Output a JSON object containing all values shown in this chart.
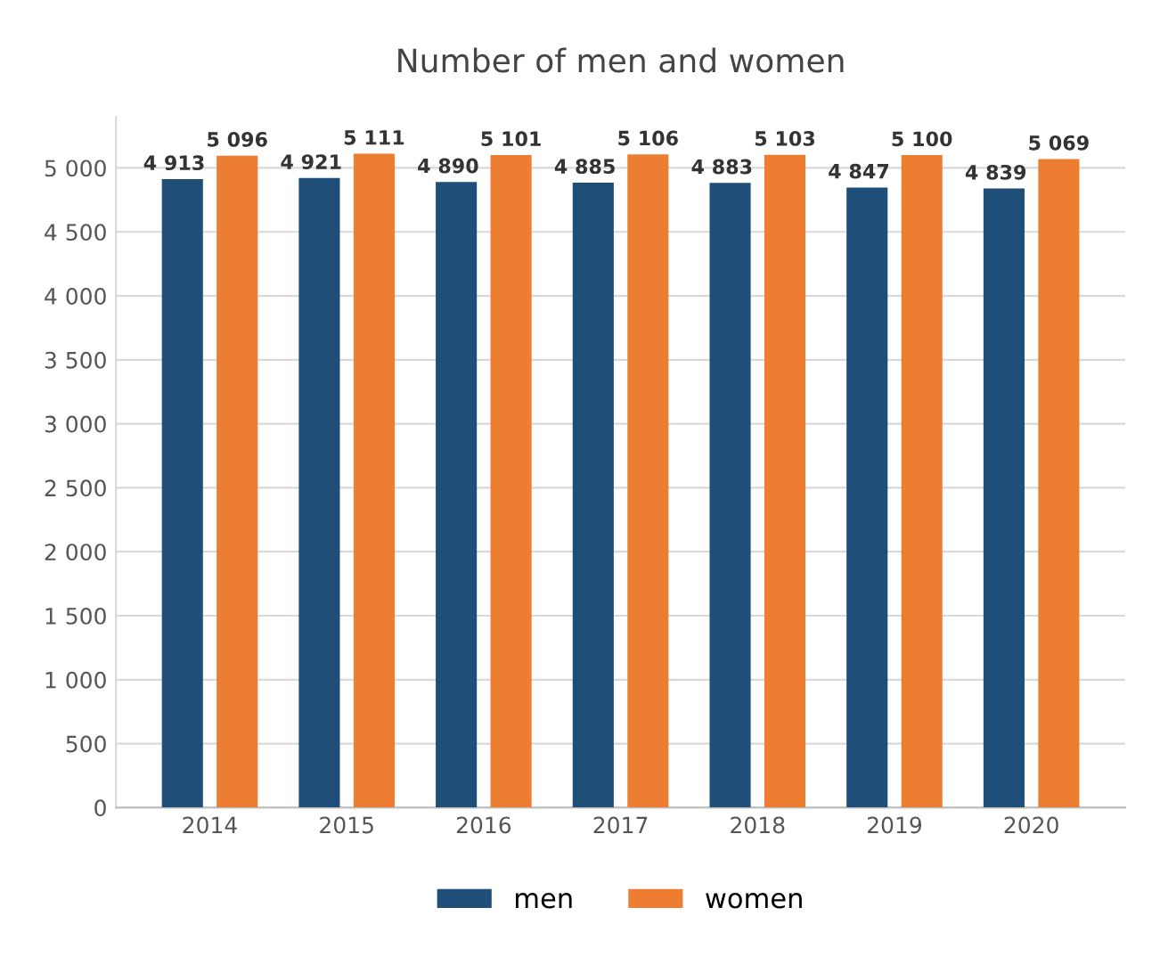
{
  "chart_data": {
    "type": "bar",
    "title": "Number of men and women",
    "categories": [
      "2014",
      "2015",
      "2016",
      "2017",
      "2018",
      "2019",
      "2020"
    ],
    "series": [
      {
        "name": "men",
        "color": "#1f4e79",
        "values": [
          4913,
          4921,
          4890,
          4885,
          4883,
          4847,
          4839
        ],
        "value_labels": [
          "4 913",
          "4 921",
          "4 890",
          "4 885",
          "4 883",
          "4 847",
          "4 839"
        ]
      },
      {
        "name": "women",
        "color": "#ed7d31",
        "values": [
          5096,
          5111,
          5101,
          5106,
          5103,
          5100,
          5069
        ],
        "value_labels": [
          "5 096",
          "5 111",
          "5 101",
          "5 106",
          "5 103",
          "5 100",
          "5 069"
        ]
      }
    ],
    "ylim": [
      0,
      5400
    ],
    "yticks": [
      0,
      500,
      {
        "value": 1000,
        "label": "1 000"
      },
      {
        "value": 1500,
        "label": "1 500"
      },
      {
        "value": 2000,
        "label": "2 000"
      },
      {
        "value": 2500,
        "label": "2 500"
      },
      {
        "value": 3000,
        "label": "3 000"
      },
      {
        "value": 3500,
        "label": "3 500"
      },
      {
        "value": 4000,
        "label": "4 000"
      },
      {
        "value": 4500,
        "label": "4 500"
      },
      {
        "value": 5000,
        "label": "5 000"
      }
    ],
    "grid": "y",
    "legend": "bottom"
  }
}
